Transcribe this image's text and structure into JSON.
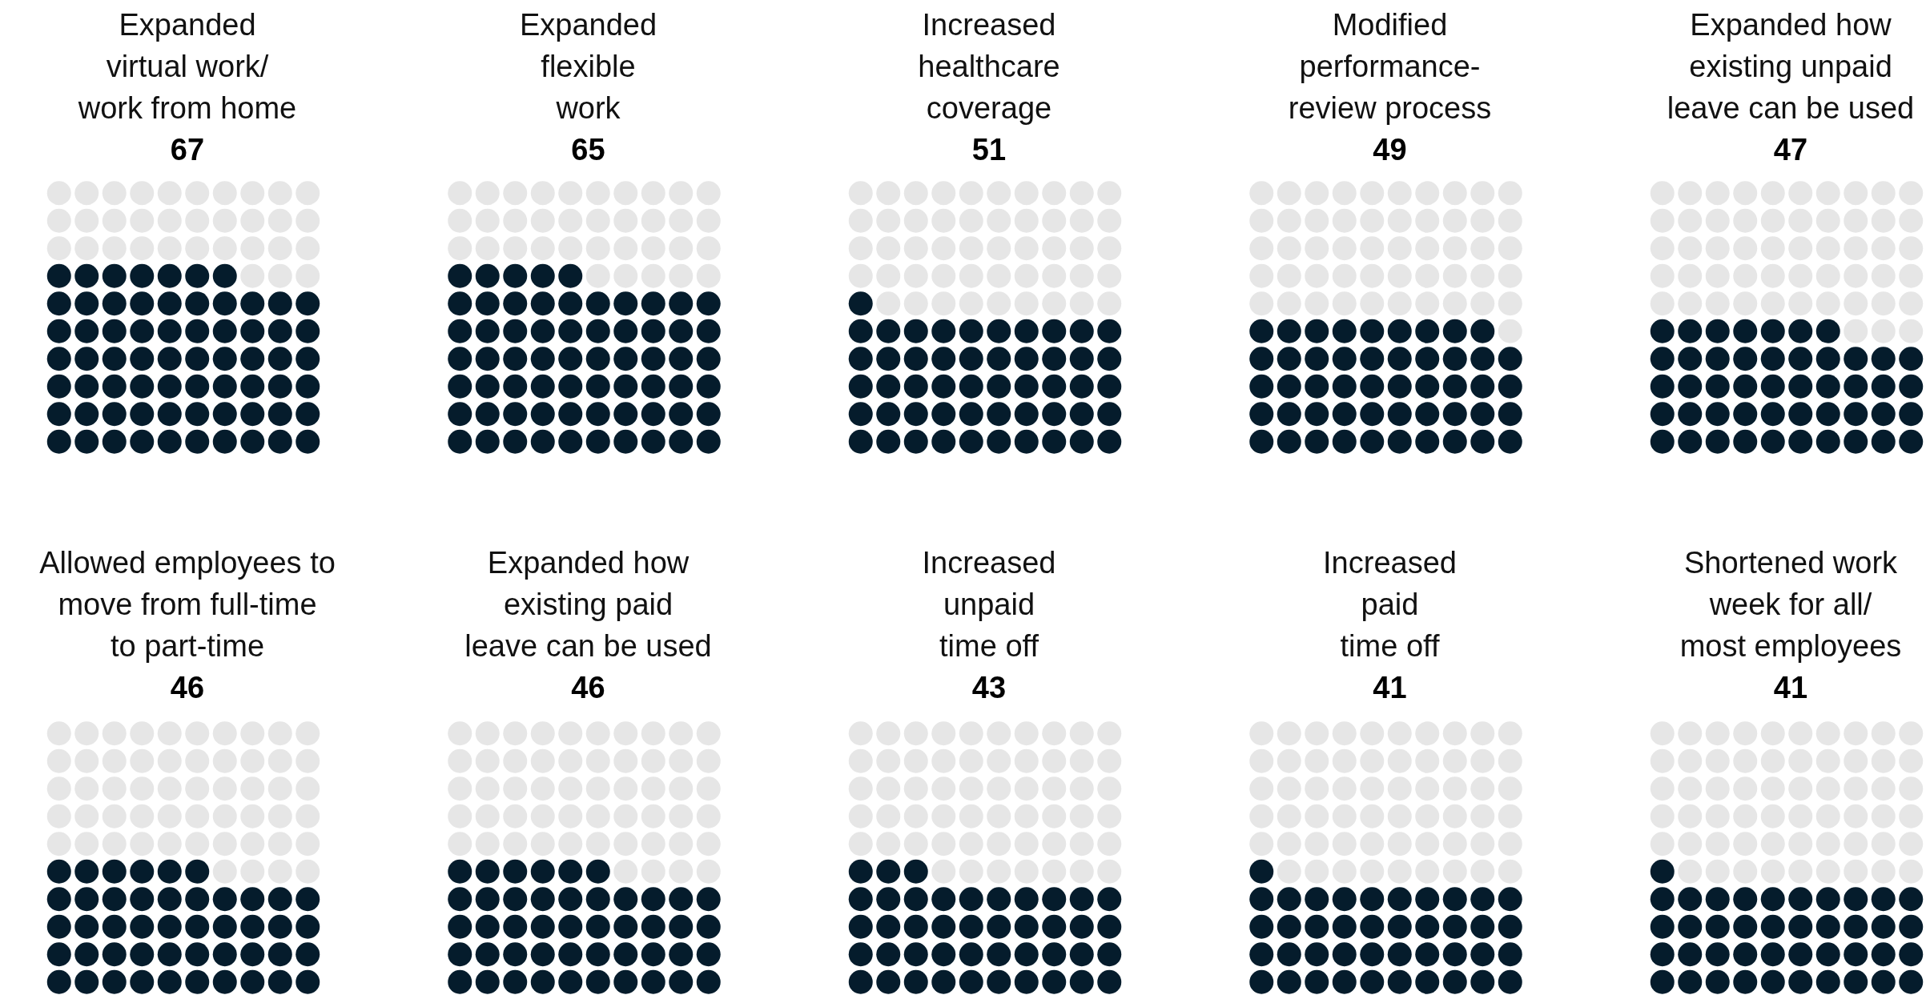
{
  "chart_data": {
    "type": "other",
    "categories": [
      "Expanded\nvirtual work/\nwork from home",
      "Expanded\nflexible\nwork",
      "Increased\nhealthcare\ncoverage",
      "Modified\nperformance-\nreview process",
      "Expanded how\nexisting unpaid\nleave can be used",
      "Allowed employees to\nmove from full-time\nto part-time",
      "Expanded how\nexisting paid\nleave can be used",
      "Increased\nunpaid\ntime off",
      "Increased\npaid\ntime off",
      "Shortened work\nweek for all/\nmost employees"
    ],
    "values": [
      67,
      65,
      51,
      49,
      47,
      46,
      46,
      43,
      41,
      41
    ],
    "color": "#051c2c",
    "data_labels": true
  }
}
